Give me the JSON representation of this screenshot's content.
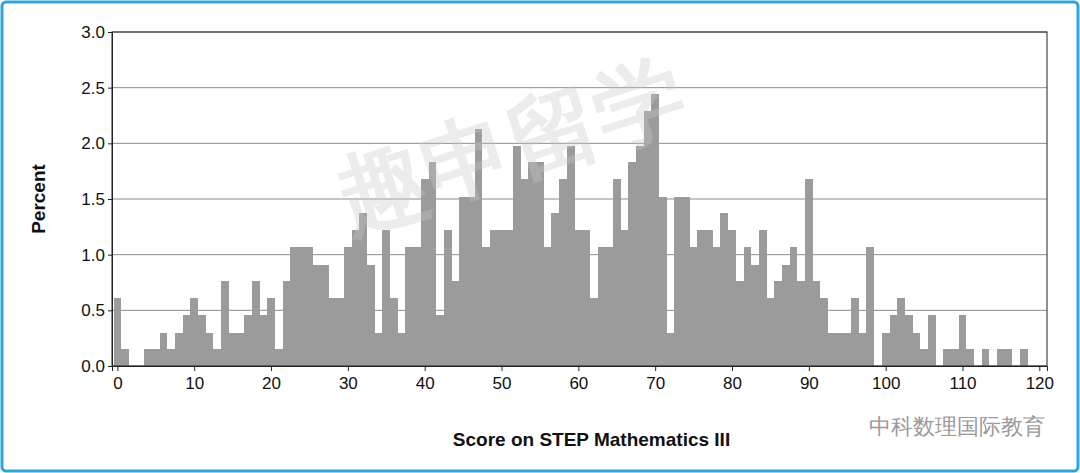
{
  "chart_data": {
    "type": "histogram",
    "x_label": "Score on STEP Mathematics III",
    "y_label": "Percent",
    "bins": [
      -0.5,
      0.5,
      1.5,
      2.5,
      3.5,
      4.5,
      5.5,
      6.5,
      7.5,
      8.5,
      9.5,
      10.5,
      11.5,
      12.5,
      13.5,
      14.5,
      15.5,
      16.5,
      17.5,
      18.5,
      19.5,
      20.5,
      21.5,
      22.5,
      23.5,
      24.5,
      25.5,
      26.5,
      27.5,
      28.5,
      29.5,
      30.5,
      31.5,
      32.5,
      33.5,
      34.5,
      35.5,
      36.5,
      37.5,
      38.5,
      39.5,
      40.5,
      41.5,
      42.5,
      43.5,
      44.5,
      45.5,
      46.5,
      47.5,
      48.5,
      49.5,
      50.5,
      51.5,
      52.5,
      53.5,
      54.5,
      55.5,
      56.5,
      57.5,
      58.5,
      59.5,
      60.5,
      61.5,
      62.5,
      63.5,
      64.5,
      65.5,
      66.5,
      67.5,
      68.5,
      69.5,
      70.5,
      71.5,
      72.5,
      73.5,
      74.5,
      75.5,
      76.5,
      77.5,
      78.5,
      79.5,
      80.5,
      81.5,
      82.5,
      83.5,
      84.5,
      85.5,
      86.5,
      87.5,
      88.5,
      89.5,
      90.5,
      91.5,
      92.5,
      93.5,
      94.5,
      95.5,
      96.5,
      97.5,
      98.5,
      99.5,
      100.5,
      101.5,
      102.5,
      103.5,
      104.5,
      105.5,
      106.5,
      107.5,
      108.5,
      109.5,
      110.5,
      111.5,
      112.5,
      113.5,
      114.5,
      115.5,
      116.5,
      117.5,
      118.5,
      119.5
    ],
    "values": [
      0.61,
      0.15,
      0,
      0,
      0.15,
      0.15,
      0.3,
      0.15,
      0.3,
      0.46,
      0.61,
      0.46,
      0.3,
      0.15,
      0.76,
      0.3,
      0.3,
      0.46,
      0.76,
      0.46,
      0.61,
      0.15,
      0.76,
      1.07,
      1.07,
      1.07,
      0.91,
      0.91,
      0.61,
      0.61,
      1.07,
      1.22,
      1.37,
      0.91,
      0.3,
      1.22,
      0.61,
      0.3,
      1.07,
      1.07,
      1.68,
      1.83,
      0.46,
      1.22,
      0.76,
      1.52,
      1.52,
      2.13,
      1.07,
      1.22,
      1.22,
      1.22,
      1.98,
      1.68,
      1.83,
      1.83,
      1.07,
      1.37,
      1.68,
      1.98,
      1.22,
      1.22,
      0.61,
      1.07,
      1.07,
      1.68,
      1.22,
      1.83,
      1.98,
      2.29,
      2.44,
      1.52,
      0.3,
      1.52,
      1.52,
      1.07,
      1.22,
      1.22,
      1.07,
      1.37,
      1.22,
      0.76,
      1.07,
      0.91,
      1.22,
      0.61,
      0.76,
      0.91,
      1.07,
      0.76,
      1.68,
      0.76,
      0.61,
      0.3,
      0.3,
      0.3,
      0.61,
      0.3,
      1.07,
      0,
      0.3,
      0.46,
      0.61,
      0.46,
      0.3,
      0.15,
      0.46,
      0,
      0.15,
      0.15,
      0.46,
      0.15,
      0,
      0.15,
      0,
      0.15,
      0.15,
      0,
      0.15,
      0
    ],
    "color": "#9b9b9b",
    "xlim": [
      -0.7,
      121
    ],
    "ylim": [
      0,
      3.0
    ],
    "xticks": [
      0,
      10,
      20,
      30,
      40,
      50,
      60,
      70,
      80,
      90,
      100,
      110,
      120
    ],
    "yticks": [
      {
        "value": 0,
        "label": "0.0"
      },
      {
        "value": 0.5,
        "label": "0.5"
      },
      {
        "value": 1,
        "label": "1.0"
      },
      {
        "value": 1.5,
        "label": "1.5"
      },
      {
        "value": 2,
        "label": "2.0"
      },
      {
        "value": 2.5,
        "label": "2.5"
      },
      {
        "value": 3,
        "label": "3.0"
      }
    ],
    "grid": true,
    "annotations": [
      "趣申留学",
      "中科数理国际教育"
    ]
  }
}
